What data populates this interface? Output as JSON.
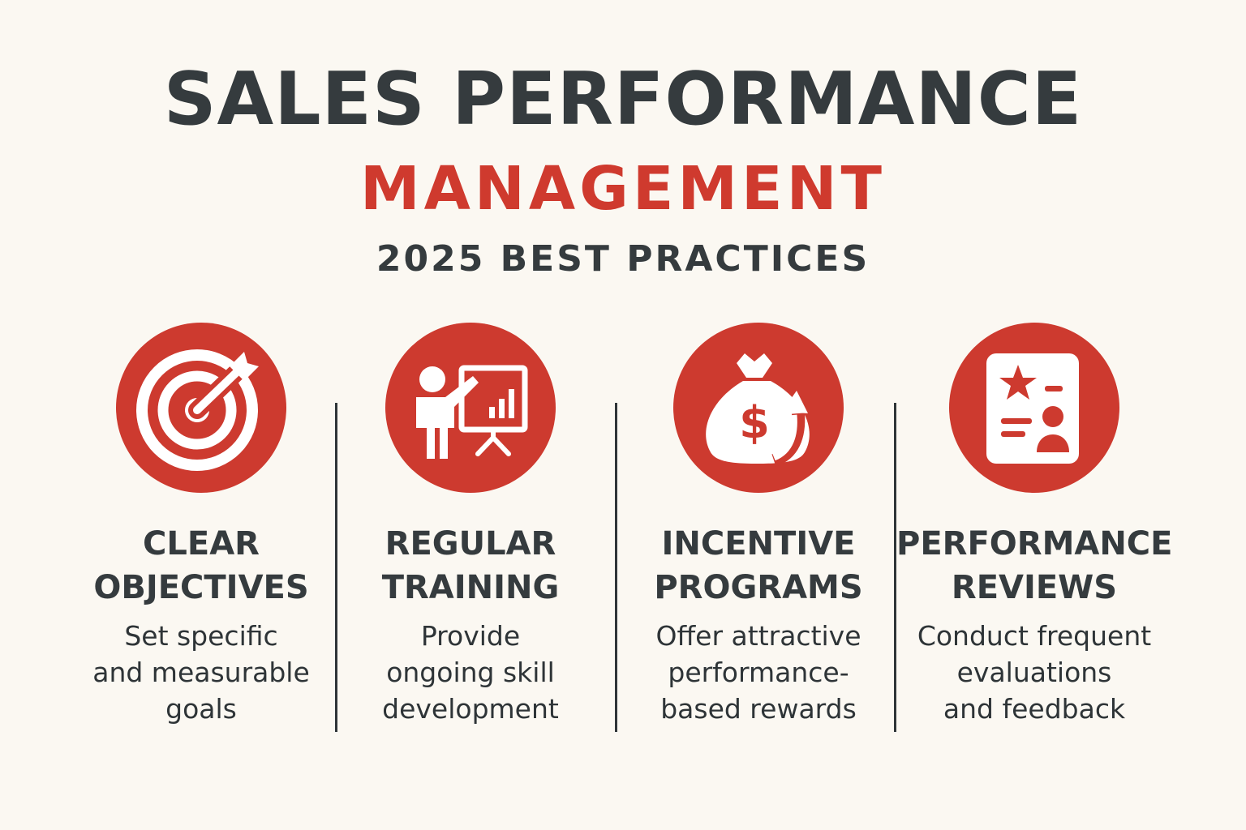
{
  "header": {
    "title_line1": "SALES PERFORMANCE",
    "title_line2": "MANAGEMENT",
    "subtitle": "2025 BEST PRACTICES"
  },
  "colors": {
    "accent": "#cd3a2f",
    "text": "#353b3e",
    "background": "#fbf8f2"
  },
  "practices": [
    {
      "icon": "target-icon",
      "title": "CLEAR\nOBJECTIVES",
      "description": "Set specific\nand measurable\ngoals"
    },
    {
      "icon": "presentation-icon",
      "title": "REGULAR\nTRAINING",
      "description": "Provide\nongoing skill\ndevelopment"
    },
    {
      "icon": "money-bag-icon",
      "title": "INCENTIVE\nPROGRAMS",
      "description": "Offer attractive\nperformance-\nbased rewards"
    },
    {
      "icon": "review-document-icon",
      "title": "PERFORMANCE\nREVIEWS",
      "description": "Conduct frequent\nevaluations\nand feedback"
    }
  ]
}
